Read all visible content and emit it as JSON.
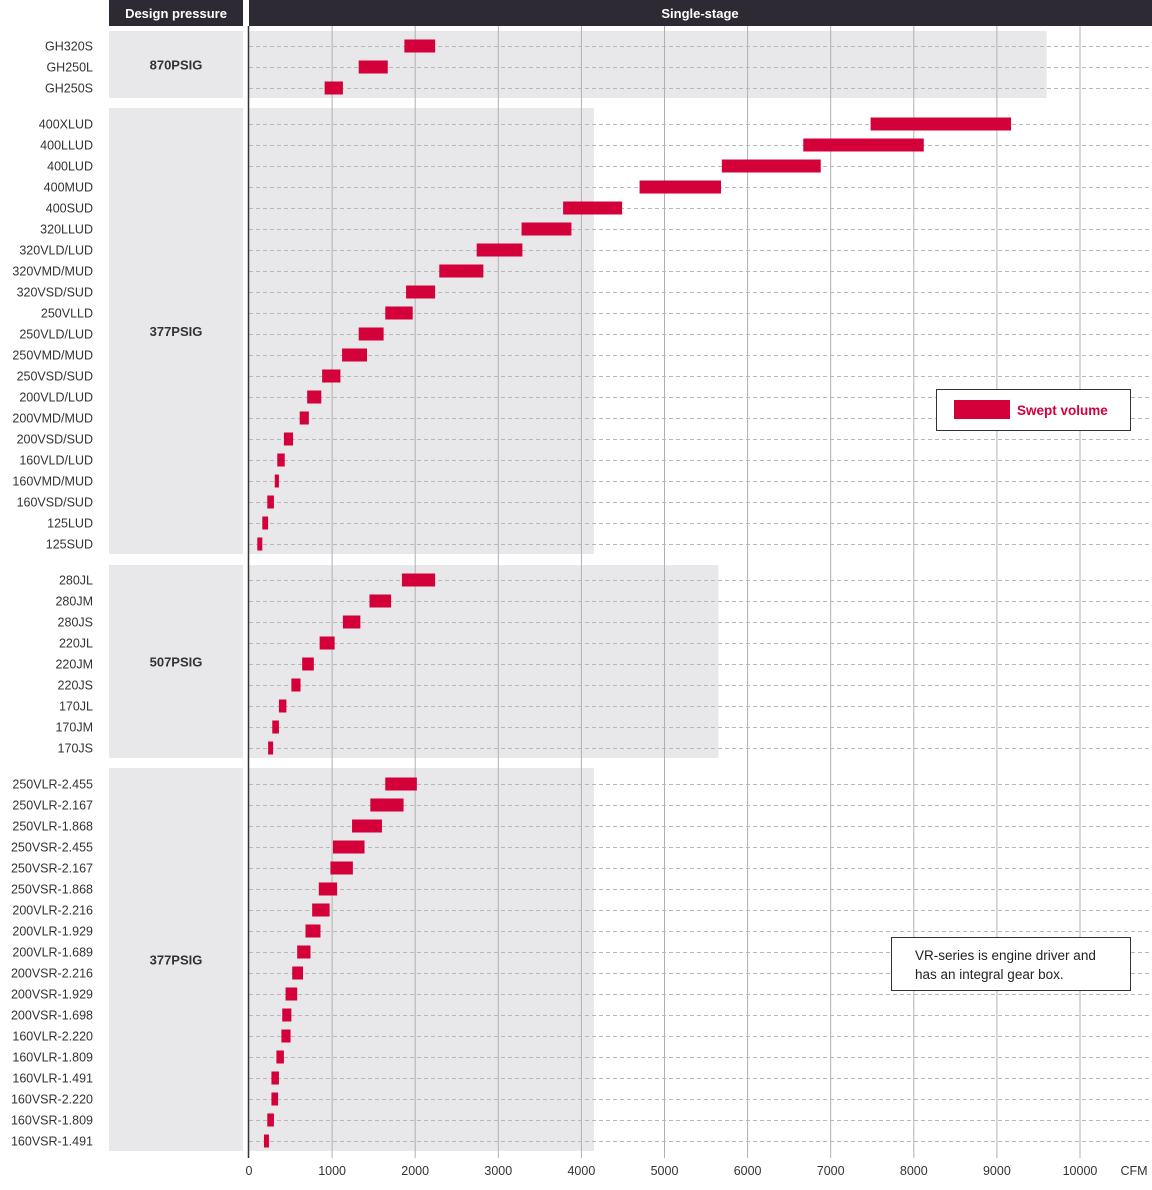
{
  "headers": {
    "left": "Design pressure",
    "right": "Single-stage"
  },
  "colors": {
    "header_bg": "#2e2a33",
    "bar": "#d4003a",
    "band": "#e8e8ea",
    "grid_solid": "#b0b0b0",
    "grid_dashed": "#b8b8b8"
  },
  "legend": {
    "label": "Swept volume",
    "position": "right"
  },
  "note": {
    "line1": "VR-series is engine driver and",
    "line2": "has an integral gear box."
  },
  "chart_data": {
    "type": "bar",
    "orientation": "horizontal-range",
    "xunit": "CFM",
    "xlim": [
      0,
      10800
    ],
    "xticks": [
      0,
      1000,
      2000,
      3000,
      4000,
      5000,
      6000,
      7000,
      8000,
      9000,
      10000
    ],
    "grid": true,
    "groups": [
      {
        "pressure": "870PSIG",
        "band_max": 9600,
        "models": [
          {
            "name": "GH320S",
            "min": 1870,
            "max": 2240
          },
          {
            "name": "GH250L",
            "min": 1320,
            "max": 1670
          },
          {
            "name": "GH250S",
            "min": 910,
            "max": 1130
          }
        ]
      },
      {
        "pressure": "377PSIG",
        "band_max": 4150,
        "models": [
          {
            "name": "400XLUD",
            "min": 7480,
            "max": 9170
          },
          {
            "name": "400LLUD",
            "min": 6670,
            "max": 8120
          },
          {
            "name": "400LUD",
            "min": 5690,
            "max": 6880
          },
          {
            "name": "400MUD",
            "min": 4700,
            "max": 5680
          },
          {
            "name": "400SUD",
            "min": 3780,
            "max": 4490
          },
          {
            "name": "320LLUD",
            "min": 3280,
            "max": 3880
          },
          {
            "name": "320VLD/LUD",
            "min": 2740,
            "max": 3290
          },
          {
            "name": "320VMD/MUD",
            "min": 2290,
            "max": 2820
          },
          {
            "name": "320VSD/SUD",
            "min": 1890,
            "max": 2240
          },
          {
            "name": "250VLLD",
            "min": 1640,
            "max": 1970
          },
          {
            "name": "250VLD/LUD",
            "min": 1320,
            "max": 1620
          },
          {
            "name": "250VMD/MUD",
            "min": 1120,
            "max": 1420
          },
          {
            "name": "250VSD/SUD",
            "min": 880,
            "max": 1100
          },
          {
            "name": "200VLD/LUD",
            "min": 700,
            "max": 870
          },
          {
            "name": "200VMD/MUD",
            "min": 610,
            "max": 720
          },
          {
            "name": "200VSD/SUD",
            "min": 420,
            "max": 530
          },
          {
            "name": "160VLD/LUD",
            "min": 340,
            "max": 430
          },
          {
            "name": "160VMD/MUD",
            "min": 310,
            "max": 360
          },
          {
            "name": "160VSD/SUD",
            "min": 220,
            "max": 300
          },
          {
            "name": "125LUD",
            "min": 160,
            "max": 230
          },
          {
            "name": "125SUD",
            "min": 100,
            "max": 160
          }
        ]
      },
      {
        "pressure": "507PSIG",
        "band_max": 5650,
        "models": [
          {
            "name": "280JL",
            "min": 1840,
            "max": 2240
          },
          {
            "name": "280JM",
            "min": 1450,
            "max": 1710
          },
          {
            "name": "280JS",
            "min": 1130,
            "max": 1340
          },
          {
            "name": "220JL",
            "min": 850,
            "max": 1030
          },
          {
            "name": "220JM",
            "min": 640,
            "max": 780
          },
          {
            "name": "220JS",
            "min": 510,
            "max": 620
          },
          {
            "name": "170JL",
            "min": 360,
            "max": 450
          },
          {
            "name": "170JM",
            "min": 280,
            "max": 360
          },
          {
            "name": "170JS",
            "min": 230,
            "max": 290
          }
        ]
      },
      {
        "pressure": "377PSIG",
        "band_max": 4150,
        "models": [
          {
            "name": "250VLR-2.455",
            "min": 1640,
            "max": 2020
          },
          {
            "name": "250VLR-2.167",
            "min": 1460,
            "max": 1860
          },
          {
            "name": "250VLR-1.868",
            "min": 1240,
            "max": 1600
          },
          {
            "name": "250VSR-2.455",
            "min": 1010,
            "max": 1390
          },
          {
            "name": "250VSR-2.167",
            "min": 980,
            "max": 1250
          },
          {
            "name": "250VSR-1.868",
            "min": 840,
            "max": 1060
          },
          {
            "name": "200VLR-2.216",
            "min": 760,
            "max": 970
          },
          {
            "name": "200VLR-1.929",
            "min": 680,
            "max": 860
          },
          {
            "name": "200VLR-1.689",
            "min": 580,
            "max": 740
          },
          {
            "name": "200VSR-2.216",
            "min": 520,
            "max": 650
          },
          {
            "name": "200VSR-1.929",
            "min": 440,
            "max": 580
          },
          {
            "name": "200VSR-1.698",
            "min": 400,
            "max": 510
          },
          {
            "name": "160VLR-2.220",
            "min": 390,
            "max": 500
          },
          {
            "name": "160VLR-1.809",
            "min": 330,
            "max": 420
          },
          {
            "name": "160VLR-1.491",
            "min": 270,
            "max": 360
          },
          {
            "name": "160VSR-2.220",
            "min": 270,
            "max": 350
          },
          {
            "name": "160VSR-1.809",
            "min": 220,
            "max": 300
          },
          {
            "name": "160VSR-1.491",
            "min": 180,
            "max": 240
          }
        ]
      }
    ]
  }
}
